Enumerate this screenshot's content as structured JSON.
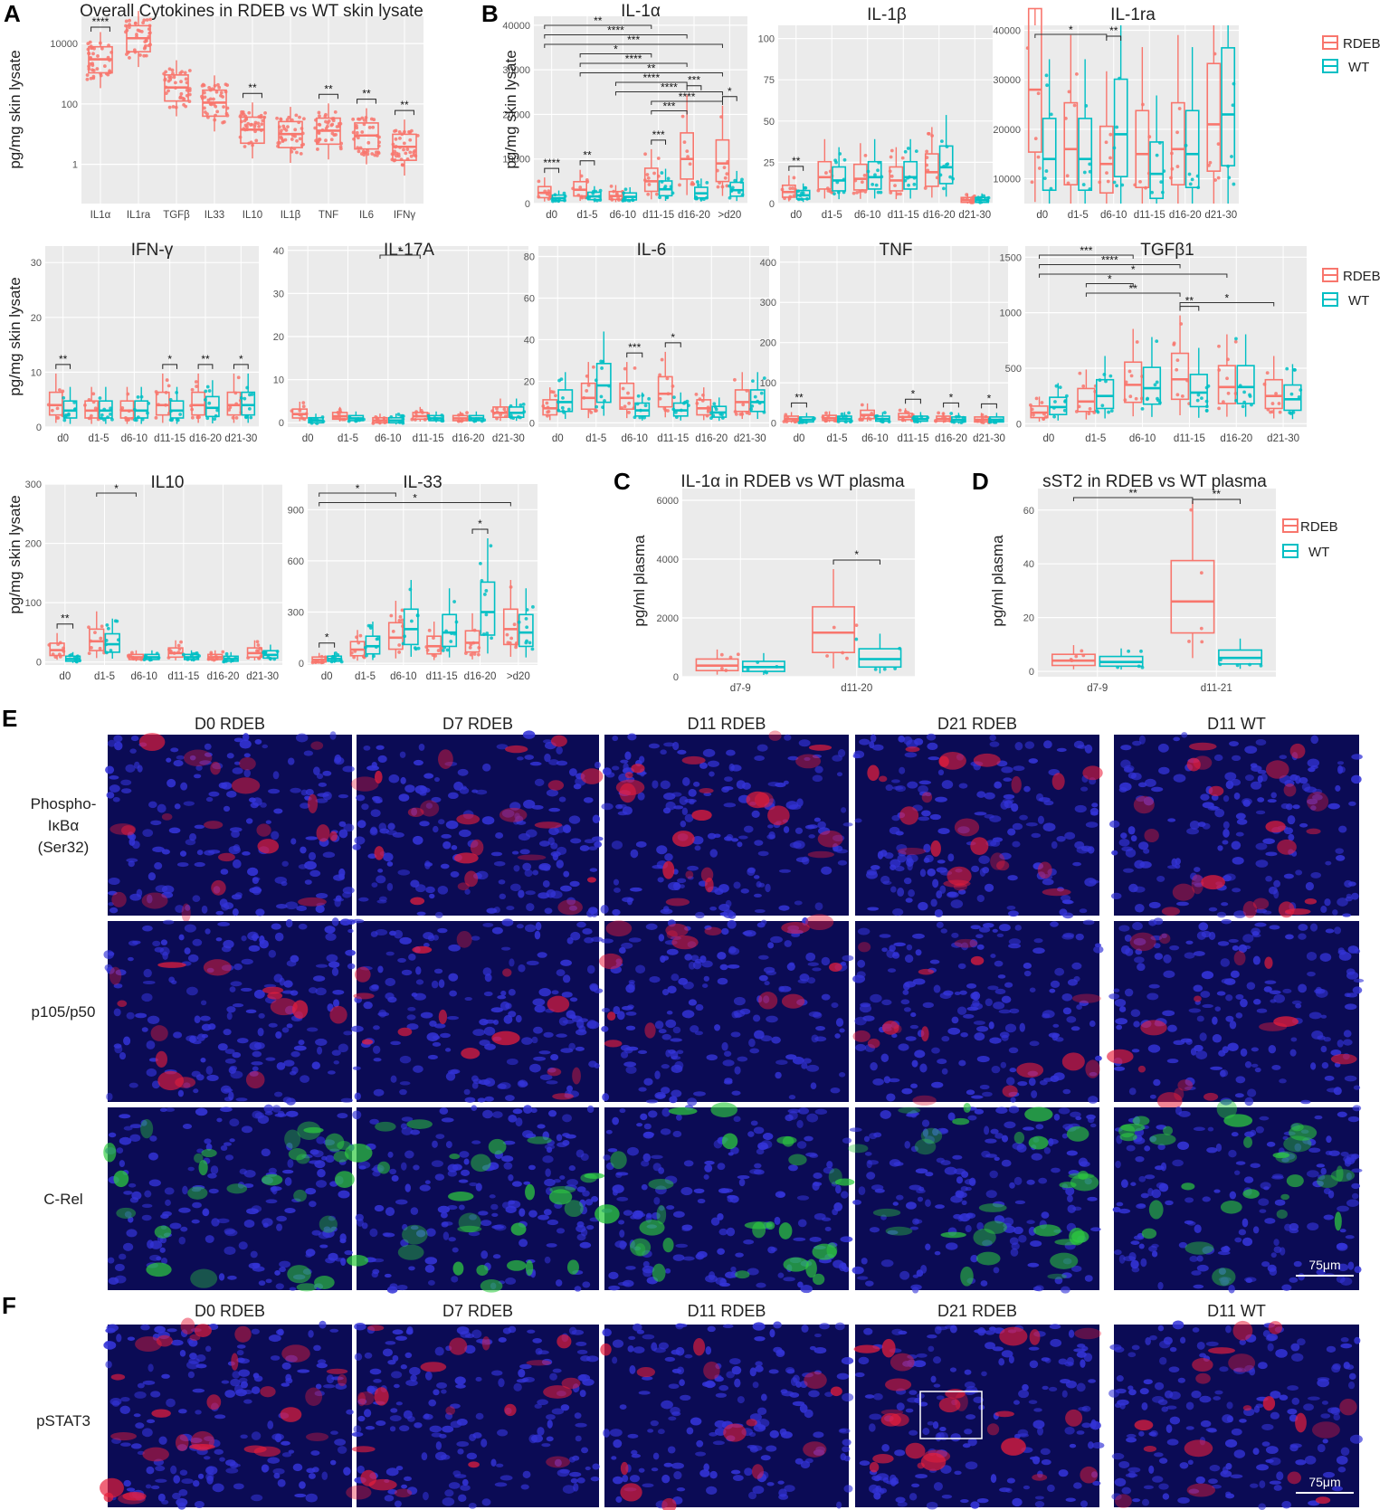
{
  "colors": {
    "rdeb": "#f8766d",
    "wt": "#00bfc4",
    "panel_bg": "#ebebeb",
    "grid": "#ffffff"
  },
  "legend": {
    "rdeb": "RDEB",
    "wt": "WT"
  },
  "chart_data": [
    {
      "id": "A",
      "type": "box",
      "title": "Overall Cytokines in RDEB vs WT skin lysate",
      "ylabel": "pg/mg skin lysate",
      "yscale": "log",
      "ylim": [
        0.05,
        80000
      ],
      "yticks": [
        1,
        100,
        10000
      ],
      "ytick_labels": [
        "1",
        "100",
        "10000"
      ],
      "categories": [
        "IL1α",
        "IL1ra",
        "TGFβ",
        "IL33",
        "IL10",
        "IL1β",
        "TNF",
        "IL6",
        "IFNγ"
      ],
      "paired": false,
      "series": [
        {
          "name": "RDEB",
          "medians": [
            3000,
            15000,
            350,
            110,
            14,
            10,
            13,
            9,
            3.8
          ]
        }
      ],
      "significance": [
        {
          "cat": 0,
          "label": "****"
        },
        {
          "cat": 4,
          "label": "**"
        },
        {
          "cat": 6,
          "label": "**"
        },
        {
          "cat": 7,
          "label": "**"
        },
        {
          "cat": 8,
          "label": "**"
        }
      ]
    },
    {
      "id": "B1",
      "type": "box",
      "title": "IL-1α",
      "ylabel": "pg/mg skin lysate",
      "ylim": [
        0,
        42000
      ],
      "yticks": [
        0,
        10000,
        20000,
        30000,
        40000
      ],
      "categories": [
        "d0",
        "d1-5",
        "d6-10",
        "d11-15",
        "d16-20",
        ">d20"
      ],
      "series": [
        {
          "name": "RDEB",
          "medians": [
            2400,
            3100,
            1700,
            5000,
            10000,
            9000
          ]
        },
        {
          "name": "WT",
          "medians": [
            1200,
            1600,
            1500,
            3200,
            2300,
            3000
          ]
        }
      ],
      "significance": [
        {
          "cat": 0,
          "label": "****"
        },
        {
          "cat": 1,
          "label": "**"
        },
        {
          "cat": 3,
          "label": "***"
        },
        {
          "cat": 4,
          "label": "***"
        },
        {
          "cat": 5,
          "label": "*"
        }
      ],
      "brackets": [
        {
          "from": 0,
          "to": 3,
          "label": "**"
        },
        {
          "from": 0,
          "to": 4,
          "label": "****"
        },
        {
          "from": 0,
          "to": 5,
          "label": "***"
        },
        {
          "from": 1,
          "to": 3,
          "label": "*"
        },
        {
          "from": 1,
          "to": 4,
          "label": "****"
        },
        {
          "from": 1,
          "to": 5,
          "label": "**"
        },
        {
          "from": 2,
          "to": 4,
          "label": "****"
        },
        {
          "from": 2,
          "to": 5,
          "label": "****"
        },
        {
          "from": 3,
          "to": 5,
          "label": "****"
        },
        {
          "from": 3,
          "to": 4,
          "label": "***"
        }
      ]
    },
    {
      "id": "B2",
      "type": "box",
      "title": "IL-1β",
      "ylim": [
        0,
        108
      ],
      "yticks": [
        0,
        25,
        50,
        75,
        100
      ],
      "categories": [
        "d0",
        "d1-5",
        "d6-10",
        "d11-15",
        "d16-20",
        "d21-30"
      ],
      "series": [
        {
          "name": "RDEB",
          "medians": [
            7,
            16,
            15,
            14,
            19,
            2
          ]
        },
        {
          "name": "WT",
          "medians": [
            5,
            14,
            16,
            16,
            22,
            2
          ]
        }
      ],
      "significance": [
        {
          "cat": 0,
          "label": "**"
        }
      ],
      "brackets": []
    },
    {
      "id": "B3",
      "type": "box",
      "title": "IL-1ra",
      "ylim": [
        5000,
        41000
      ],
      "yticks": [
        10000,
        20000,
        30000,
        40000
      ],
      "categories": [
        "d0",
        "d1-5",
        "d6-10",
        "d11-15",
        "d16-20",
        "d21-30"
      ],
      "series": [
        {
          "name": "RDEB",
          "medians": [
            28000,
            16000,
            13000,
            15000,
            16000,
            21000
          ]
        },
        {
          "name": "WT",
          "medians": [
            14000,
            14000,
            19000,
            11000,
            15000,
            23000
          ]
        }
      ],
      "significance": [
        {
          "cat": 2,
          "label": "**"
        }
      ],
      "brackets": [
        {
          "from": 0,
          "to": 2,
          "label": "*"
        }
      ]
    },
    {
      "id": "B4",
      "type": "box",
      "title": "IFN-γ",
      "ylabel": "pg/mg skin lysate",
      "ylim": [
        0,
        33
      ],
      "yticks": [
        0,
        10,
        20,
        30
      ],
      "categories": [
        "d0",
        "d1-5",
        "d6-10",
        "d11-15",
        "d16-20",
        "d21-30"
      ],
      "series": [
        {
          "name": "RDEB",
          "medians": [
            4,
            3,
            3,
            4,
            4,
            4
          ]
        },
        {
          "name": "WT",
          "medians": [
            3,
            3,
            3,
            3,
            3.5,
            4
          ]
        }
      ],
      "significance": [
        {
          "cat": 0,
          "label": "**"
        },
        {
          "cat": 3,
          "label": "*"
        },
        {
          "cat": 4,
          "label": "**"
        },
        {
          "cat": 5,
          "label": "*"
        }
      ],
      "brackets": []
    },
    {
      "id": "B5",
      "type": "box",
      "title": "IL-17A",
      "ylim": [
        -1,
        41
      ],
      "yticks": [
        0,
        10,
        20,
        30,
        40
      ],
      "categories": [
        "d0",
        "d1-5",
        "d6-10",
        "d11-15",
        "d16-20",
        "d21-30"
      ],
      "series": [
        {
          "name": "RDEB",
          "medians": [
            2,
            1.5,
            0.5,
            1.5,
            1,
            2.3
          ]
        },
        {
          "name": "WT",
          "medians": [
            0.5,
            1,
            0.5,
            1,
            1,
            2.3
          ]
        }
      ],
      "significance": [],
      "brackets": [
        {
          "from": 2,
          "to": 3,
          "label": "*"
        }
      ]
    },
    {
      "id": "B6",
      "type": "box",
      "title": "IL-6",
      "ylim": [
        -2,
        85
      ],
      "yticks": [
        0,
        20,
        40,
        60,
        80
      ],
      "categories": [
        "d0",
        "d1-5",
        "d6-10",
        "d11-15",
        "d16-20",
        "d21-30"
      ],
      "series": [
        {
          "name": "RDEB",
          "medians": [
            7,
            12,
            12,
            14,
            7,
            10
          ]
        },
        {
          "name": "WT",
          "medians": [
            10,
            18,
            6,
            6,
            5,
            10
          ]
        }
      ],
      "significance": [
        {
          "cat": 2,
          "label": "***"
        },
        {
          "cat": 3,
          "label": "*"
        }
      ],
      "brackets": []
    },
    {
      "id": "B7",
      "type": "box",
      "title": "TNF",
      "ylim": [
        -10,
        440
      ],
      "yticks": [
        0,
        100,
        200,
        300,
        400
      ],
      "categories": [
        "d0",
        "d1-5",
        "d6-10",
        "d11-15",
        "d16-20",
        "d21-30"
      ],
      "series": [
        {
          "name": "RDEB",
          "medians": [
            10,
            12,
            20,
            15,
            10,
            8
          ]
        },
        {
          "name": "WT",
          "medians": [
            8,
            10,
            10,
            10,
            8,
            8
          ]
        }
      ],
      "significance": [
        {
          "cat": 0,
          "label": "**"
        },
        {
          "cat": 3,
          "label": "*"
        },
        {
          "cat": 4,
          "label": "*"
        },
        {
          "cat": 5,
          "label": "*"
        }
      ],
      "brackets": []
    },
    {
      "id": "B8",
      "type": "box",
      "title": "TGFβ1",
      "ylim": [
        -30,
        1600
      ],
      "yticks": [
        0,
        500,
        1000,
        1500
      ],
      "categories": [
        "d0",
        "d1-5",
        "d6-10",
        "d11-15",
        "d16-20",
        "d21-30"
      ],
      "series": [
        {
          "name": "RDEB",
          "medians": [
            100,
            200,
            350,
            400,
            330,
            250
          ]
        },
        {
          "name": "WT",
          "medians": [
            150,
            250,
            320,
            280,
            330,
            220
          ]
        }
      ],
      "significance": [
        {
          "cat": 3,
          "label": "**"
        }
      ],
      "brackets": [
        {
          "from": 0,
          "to": 2,
          "label": "***"
        },
        {
          "from": 0,
          "to": 3,
          "label": "****"
        },
        {
          "from": 0,
          "to": 4,
          "label": "*"
        },
        {
          "from": 1,
          "to": 2,
          "label": "*"
        },
        {
          "from": 1,
          "to": 3,
          "label": "**"
        },
        {
          "from": 3,
          "to": 5,
          "label": "*"
        }
      ]
    },
    {
      "id": "B9",
      "type": "box",
      "title": "IL10",
      "ylabel": "pg/mg skin lysate",
      "ylim": [
        -5,
        300
      ],
      "yticks": [
        0,
        100,
        200,
        300
      ],
      "categories": [
        "d0",
        "d1-5",
        "d6-10",
        "d11-15",
        "d16-20",
        "d21-30"
      ],
      "series": [
        {
          "name": "RDEB",
          "medians": [
            20,
            35,
            8,
            15,
            8,
            15
          ]
        },
        {
          "name": "WT",
          "medians": [
            5,
            30,
            8,
            8,
            5,
            12
          ]
        }
      ],
      "significance": [
        {
          "cat": 0,
          "label": "**"
        }
      ],
      "brackets": [
        {
          "from": 1,
          "to": 2,
          "label": "*"
        }
      ]
    },
    {
      "id": "B10",
      "type": "box",
      "title": "IL-33",
      "ylim": [
        -10,
        1050
      ],
      "yticks": [
        0,
        300,
        600,
        900
      ],
      "categories": [
        "d0",
        "d1-5",
        "d6-10",
        "d11-15",
        "d16-20",
        ">d20"
      ],
      "series": [
        {
          "name": "RDEB",
          "medians": [
            20,
            80,
            150,
            100,
            120,
            200
          ]
        },
        {
          "name": "WT",
          "medians": [
            25,
            100,
            200,
            180,
            300,
            180
          ]
        }
      ],
      "significance": [
        {
          "cat": 0,
          "label": "*"
        },
        {
          "cat": 4,
          "label": "*"
        }
      ],
      "brackets": [
        {
          "from": 0,
          "to": 2,
          "label": "*"
        },
        {
          "from": 0,
          "to": 5,
          "label": "*"
        }
      ]
    },
    {
      "id": "C",
      "type": "box",
      "title": "IL-1α  in RDEB vs WT plasma",
      "ylabel": "pg/ml plasma",
      "ylim": [
        0,
        6400
      ],
      "yticks": [
        0,
        2000,
        4000,
        6000
      ],
      "categories": [
        "d7-9",
        "d11-20"
      ],
      "series": [
        {
          "name": "RDEB",
          "medians": [
            380,
            1500
          ]
        },
        {
          "name": "WT",
          "medians": [
            330,
            600
          ]
        }
      ],
      "significance": [
        {
          "cat": 1,
          "label": "*"
        }
      ],
      "brackets": []
    },
    {
      "id": "D",
      "type": "box",
      "title": "sST2 in RDEB vs WT plasma",
      "ylabel": "pg/ml plasma",
      "ylim": [
        -2,
        68
      ],
      "yticks": [
        0,
        20,
        40,
        60
      ],
      "categories": [
        "d7-9",
        "d11-21"
      ],
      "series": [
        {
          "name": "RDEB",
          "medians": [
            4,
            26
          ]
        },
        {
          "name": "WT",
          "medians": [
            3.5,
            5
          ]
        }
      ],
      "significance": [
        {
          "cat": 1,
          "label": "**"
        }
      ],
      "brackets": [
        {
          "from": 0,
          "to": 1,
          "label": "**",
          "group": "RDEB"
        }
      ]
    }
  ],
  "panels": {
    "A": "A",
    "B": "B",
    "C": "C",
    "D": "D",
    "E": "E",
    "F": "F"
  },
  "microscopy_E": {
    "columns": [
      "D0 RDEB",
      "D7 RDEB",
      "D11 RDEB",
      "D21 RDEB",
      "D11 WT"
    ],
    "rows": [
      {
        "label": "Phospho-\nIκBα\n(Ser32)",
        "stain": "red"
      },
      {
        "label": "p105/p50",
        "stain": "red"
      },
      {
        "label": "C-Rel",
        "stain": "green"
      }
    ],
    "scalebar": "75μm"
  },
  "microscopy_F": {
    "columns": [
      "D0 RDEB",
      "D7 RDEB",
      "D11 RDEB",
      "D21 RDEB",
      "D11 WT"
    ],
    "rows": [
      {
        "label": "pSTAT3",
        "stain": "red"
      }
    ],
    "scalebar": "75μm"
  }
}
